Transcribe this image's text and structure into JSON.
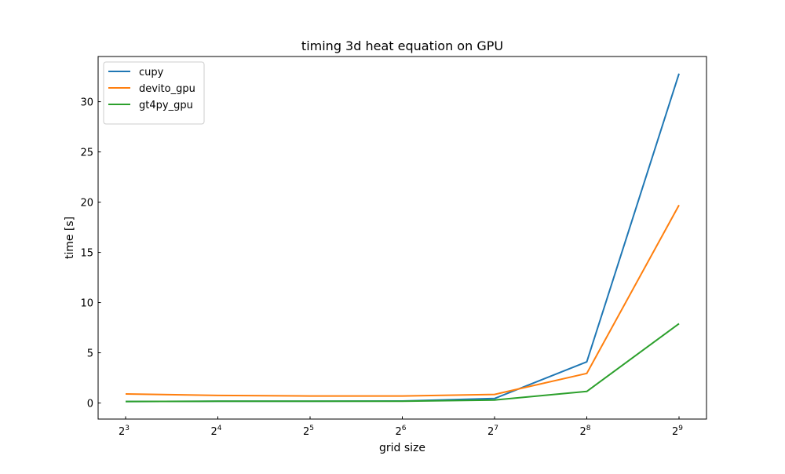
{
  "chart_data": {
    "type": "line",
    "title": "timing 3d heat equation on GPU",
    "xlabel": "grid size",
    "ylabel": "time [s]",
    "x": [
      8,
      16,
      32,
      64,
      128,
      256,
      512
    ],
    "x_scale": "log2",
    "x_tick_labels": [
      {
        "base": "2",
        "exp": "3"
      },
      {
        "base": "2",
        "exp": "4"
      },
      {
        "base": "2",
        "exp": "5"
      },
      {
        "base": "2",
        "exp": "6"
      },
      {
        "base": "2",
        "exp": "7"
      },
      {
        "base": "2",
        "exp": "8"
      },
      {
        "base": "2",
        "exp": "9"
      }
    ],
    "yticks": [
      0,
      5,
      10,
      15,
      20,
      25,
      30
    ],
    "ylim": [
      -1.6,
      34.5
    ],
    "grid": false,
    "legend_position": "top-left",
    "series": [
      {
        "name": "cupy",
        "color": "#1f77b4",
        "values": [
          0.15,
          0.17,
          0.18,
          0.2,
          0.45,
          4.1,
          32.8
        ]
      },
      {
        "name": "devito_gpu",
        "color": "#ff7f0e",
        "values": [
          0.9,
          0.75,
          0.7,
          0.7,
          0.85,
          2.95,
          19.7
        ]
      },
      {
        "name": "gt4py_gpu",
        "color": "#2ca02c",
        "values": [
          0.15,
          0.17,
          0.17,
          0.17,
          0.3,
          1.15,
          7.9
        ]
      }
    ]
  }
}
